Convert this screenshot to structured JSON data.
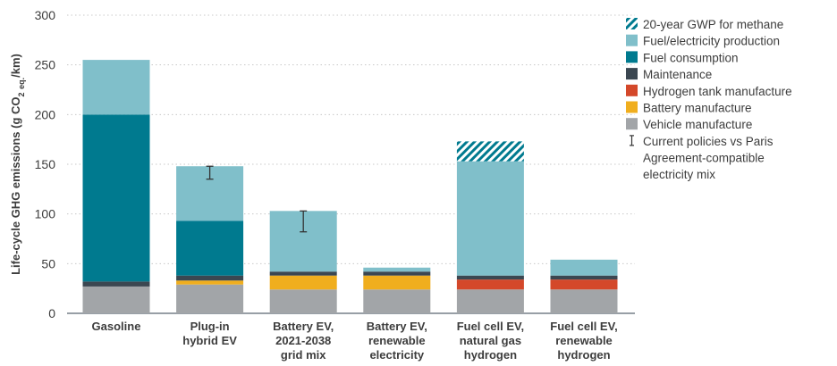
{
  "chart_data": {
    "type": "bar",
    "stacked": true,
    "title": "",
    "xlabel": "",
    "ylabel": "Life-cycle GHG emissions (g CO2 eq./km)",
    "ylabel_parts": {
      "pre": "Life-cycle GHG emissions (g CO",
      "sub1": "2",
      "sub2": "eq.",
      "post": "/km)"
    },
    "ylim": [
      0,
      300
    ],
    "yticks": [
      0,
      50,
      100,
      150,
      200,
      250,
      300
    ],
    "grid": true,
    "legend_position": "right",
    "categories": [
      [
        "Gasoline"
      ],
      [
        "Plug-in",
        "hybrid EV"
      ],
      [
        "Battery EV,",
        "2021-2038",
        "grid mix"
      ],
      [
        "Battery EV,",
        "renewable",
        "electricity"
      ],
      [
        "Fuel cell EV,",
        "natural gas",
        "hydrogen"
      ],
      [
        "Fuel cell EV,",
        "renewable",
        "hydrogen"
      ]
    ],
    "series": [
      {
        "name": "Vehicle manufacture",
        "color": "#a2a5a8",
        "values": [
          27,
          29,
          24,
          24,
          24,
          24
        ]
      },
      {
        "name": "Battery manufacture",
        "color": "#f0ae1e",
        "values": [
          0,
          4,
          14,
          14,
          0,
          0
        ]
      },
      {
        "name": "Hydrogen tank manufacture",
        "color": "#d4482a",
        "values": [
          0,
          0,
          0,
          0,
          10,
          10
        ]
      },
      {
        "name": "Maintenance",
        "color": "#3b4751",
        "values": [
          5,
          5,
          4,
          4,
          4,
          4
        ]
      },
      {
        "name": "Fuel consumption",
        "color": "#007a8f",
        "values": [
          168,
          55,
          0,
          0,
          0,
          0
        ]
      },
      {
        "name": "Fuel/electricity production",
        "color": "#80bfca",
        "values": [
          55,
          55,
          61,
          4,
          115,
          16
        ]
      },
      {
        "name": "20-year GWP for methane",
        "color": "#007a8f",
        "pattern": "hatch",
        "values": [
          0,
          0,
          0,
          0,
          20,
          0
        ]
      }
    ],
    "error_bars": [
      null,
      {
        "low": 135,
        "high": 148
      },
      {
        "low": 82,
        "high": 103
      },
      null,
      null,
      null
    ],
    "legend": [
      {
        "label": "20-year GWP for methane",
        "kind": "hatch",
        "color": "#007a8f"
      },
      {
        "label": "Fuel/electricity production",
        "kind": "box",
        "color": "#80bfca"
      },
      {
        "label": "Fuel consumption",
        "kind": "box",
        "color": "#007a8f"
      },
      {
        "label": "Maintenance",
        "kind": "box",
        "color": "#3b4751"
      },
      {
        "label": "Hydrogen tank manufacture",
        "kind": "box",
        "color": "#d4482a"
      },
      {
        "label": "Battery manufacture",
        "kind": "box",
        "color": "#f0ae1e"
      },
      {
        "label": "Vehicle manufacture",
        "kind": "box",
        "color": "#a2a5a8"
      },
      {
        "label": [
          "Current policies vs Paris",
          "Agreement-compatible",
          "electricity mix"
        ],
        "kind": "errorbar",
        "color": "#333333"
      }
    ]
  }
}
